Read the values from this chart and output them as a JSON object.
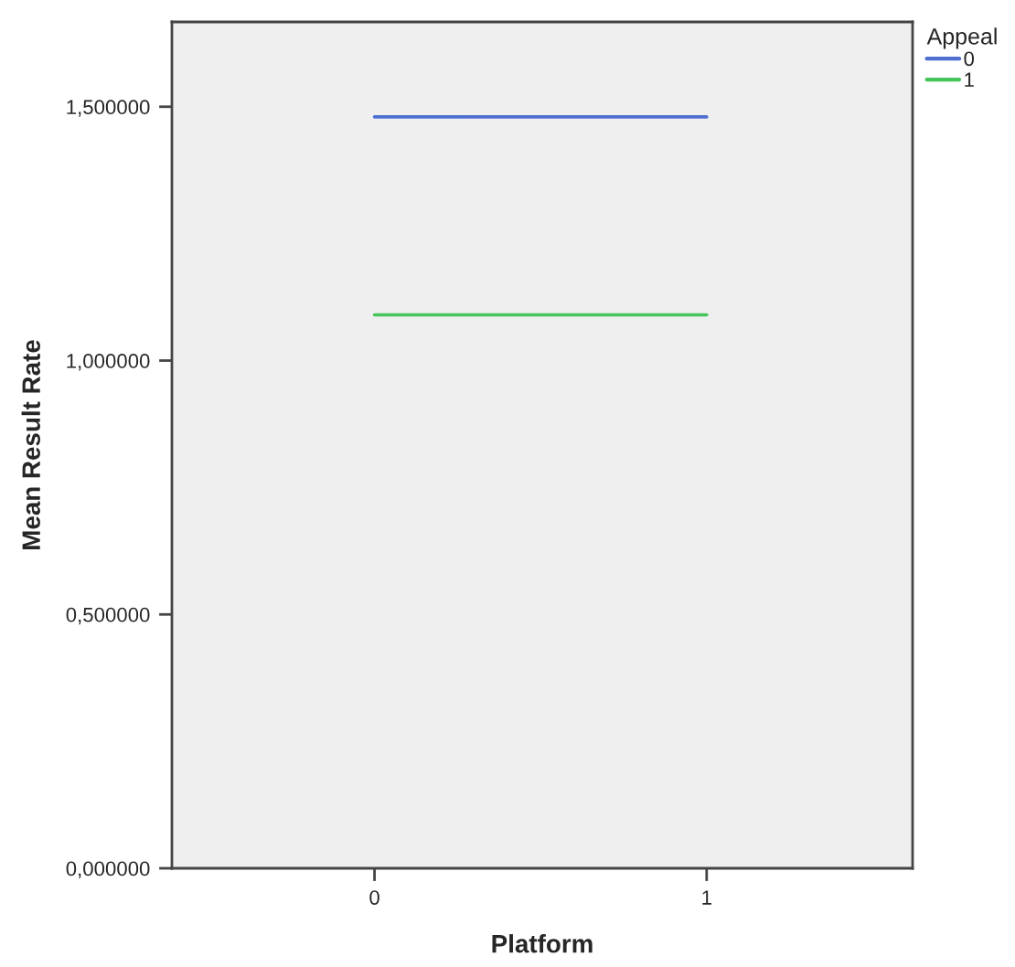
{
  "chart_data": {
    "type": "line",
    "xlabel": "Platform",
    "ylabel": "Mean Result Rate",
    "legend_title": "Appeal",
    "categories": [
      "0",
      "1"
    ],
    "series": [
      {
        "name": "0",
        "color": "#4f6fd0",
        "values": [
          1.48,
          1.48
        ]
      },
      {
        "name": "1",
        "color": "#45c45a",
        "values": [
          1.09,
          1.09
        ]
      }
    ],
    "ylim": [
      0,
      1.667
    ],
    "yticks": [
      {
        "value": 0,
        "label": "0,000000"
      },
      {
        "value": 0.5,
        "label": "0,500000"
      },
      {
        "value": 1,
        "label": "1,000000"
      },
      {
        "value": 1.5,
        "label": "1,500000"
      }
    ],
    "grid": false,
    "legend": "top right",
    "marker": "none",
    "line_style": "solid"
  }
}
